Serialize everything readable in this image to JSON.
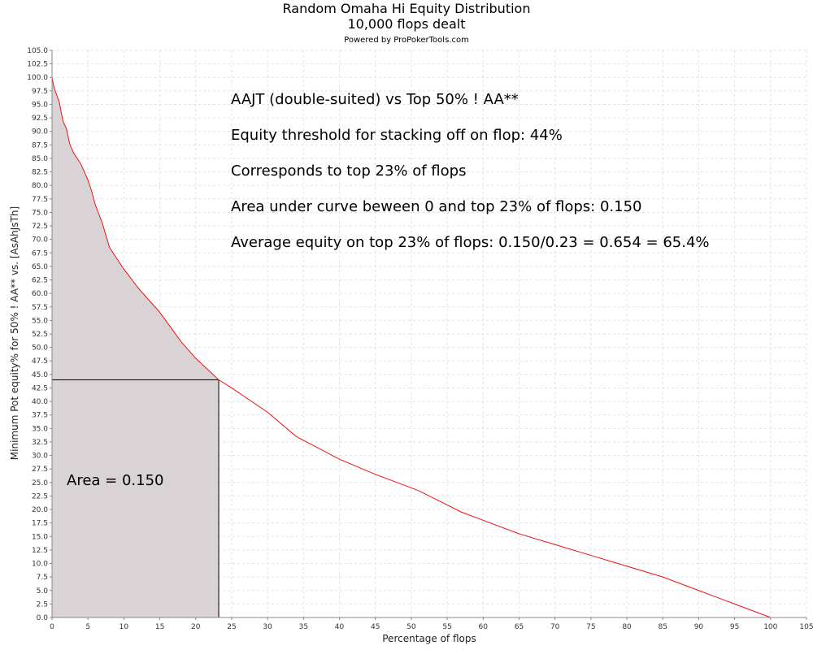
{
  "chart_data": {
    "type": "area",
    "title": "Random Omaha Hi Equity Distribution",
    "subtitle": "10,000 flops dealt",
    "credit": "Powered by ProPokerTools.com",
    "xlabel": "Percentage of flops",
    "ylabel": "Minimum Pot equity% for 50% ! AA** vs. [AsAhJsTh]",
    "xlim": [
      0,
      105
    ],
    "ylim": [
      0,
      105
    ],
    "x_ticks": [
      0,
      5,
      10,
      15,
      20,
      25,
      30,
      35,
      40,
      45,
      50,
      55,
      60,
      65,
      70,
      75,
      80,
      85,
      90,
      95,
      100,
      105
    ],
    "x_tick_labels": [
      "0",
      "5",
      "10",
      "15",
      "20",
      "25",
      "30",
      "35",
      "40",
      "45",
      "50",
      "55",
      "60",
      "65",
      "70",
      "75",
      "80",
      "85",
      "90",
      "95",
      "100",
      "105"
    ],
    "y_ticks": [
      0,
      2.5,
      5,
      7.5,
      10,
      12.5,
      15,
      17.5,
      20,
      22.5,
      25,
      27.5,
      30,
      32.5,
      35,
      37.5,
      40,
      42.5,
      45,
      47.5,
      50,
      52.5,
      55,
      57.5,
      60,
      62.5,
      65,
      67.5,
      70,
      72.5,
      75,
      77.5,
      80,
      82.5,
      85,
      87.5,
      90,
      92.5,
      95,
      97.5,
      100,
      102.5,
      105
    ],
    "y_tick_labels": [
      "0.0",
      "2.5",
      "5.0",
      "7.5",
      "10.0",
      "12.5",
      "15.0",
      "17.5",
      "20.0",
      "22.5",
      "25.0",
      "27.5",
      "30.0",
      "32.5",
      "35.0",
      "37.5",
      "40.0",
      "42.5",
      "45.0",
      "47.5",
      "50.0",
      "52.5",
      "55.0",
      "57.5",
      "60.0",
      "62.5",
      "65.0",
      "67.5",
      "70.0",
      "72.5",
      "75.0",
      "77.5",
      "80.0",
      "82.5",
      "85.0",
      "87.5",
      "90.0",
      "92.5",
      "95.0",
      "97.5",
      "100.0",
      "102.5",
      "105.0"
    ],
    "grid": true,
    "series": [
      {
        "line_color": "#f01010",
        "x": [
          0,
          0.3,
          1,
          1.5,
          2,
          2.5,
          3,
          4,
          5,
          5.5,
          6,
          7,
          8,
          10,
          12,
          15,
          18,
          20,
          22,
          23.2,
          25,
          30,
          34,
          40,
          45,
          51,
          54,
          57,
          60,
          65,
          70,
          75,
          80,
          85,
          90,
          95,
          100
        ],
        "y": [
          100,
          98,
          95.5,
          92,
          90.5,
          87.5,
          86,
          84,
          81,
          79,
          76.5,
          73,
          68.5,
          64.5,
          61,
          56.5,
          51,
          48,
          45.5,
          44,
          42.5,
          38,
          33.5,
          29.3,
          26.5,
          23.5,
          21.5,
          19.5,
          18,
          15.5,
          13.5,
          11.5,
          9.5,
          7.5,
          5,
          2.5,
          0
        ]
      }
    ],
    "fill_color": "#d9d3d6",
    "threshold": {
      "x": 23.2,
      "y": 44
    },
    "annotations": [
      "AAJT (double-suited) vs Top 50% ! AA**",
      "Equity threshold for stacking off on flop: 44%",
      "Corresponds to top 23% of flops",
      "Area under curve beween 0 and top 23% of flops: 0.150",
      "Average equity on top 23% of flops: 0.150/0.23 = 0.654 = 65.4%"
    ],
    "area_label": "Area = 0.150"
  }
}
